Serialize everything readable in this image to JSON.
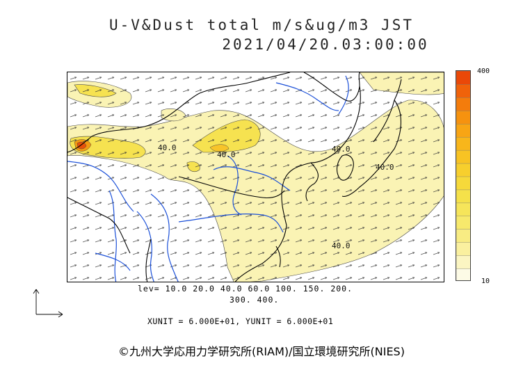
{
  "title_line1": "U-V&Dust total m/s&ug/m3 JST",
  "title_line2": "2021/04/20.03:00:00",
  "colorbar": {
    "max_label": "400",
    "min_label": "10",
    "colors": [
      "#fdfbe6",
      "#fbf5c2",
      "#faf09f",
      "#f8ec83",
      "#f7e96c",
      "#f6e55a",
      "#f5e14a",
      "#f6d93a",
      "#f7cf2d",
      "#f8c323",
      "#f8b61b",
      "#f8a514",
      "#f6920f",
      "#f47c0c",
      "#f0620a",
      "#ea4808"
    ]
  },
  "contour_labels": [
    "40.0",
    "40.0",
    "40.0",
    "40.0",
    "40.0"
  ],
  "levels_line1": "lev= 10.0 20.0 40.0 60.0 100. 150. 200.",
  "levels_line2": "300. 400.",
  "units_text": "XUNIT = 6.000E+01, YUNIT = 6.000E+01",
  "credit": "©九州大学応用力学研究所(RIAM)/国立環境研究所(NIES)",
  "colors": {
    "coast": "#000000",
    "river": "#1a4fd8",
    "dust_low": "#faf3b4",
    "dust_mid": "#f6e250",
    "dust_high": "#e8500a"
  }
}
